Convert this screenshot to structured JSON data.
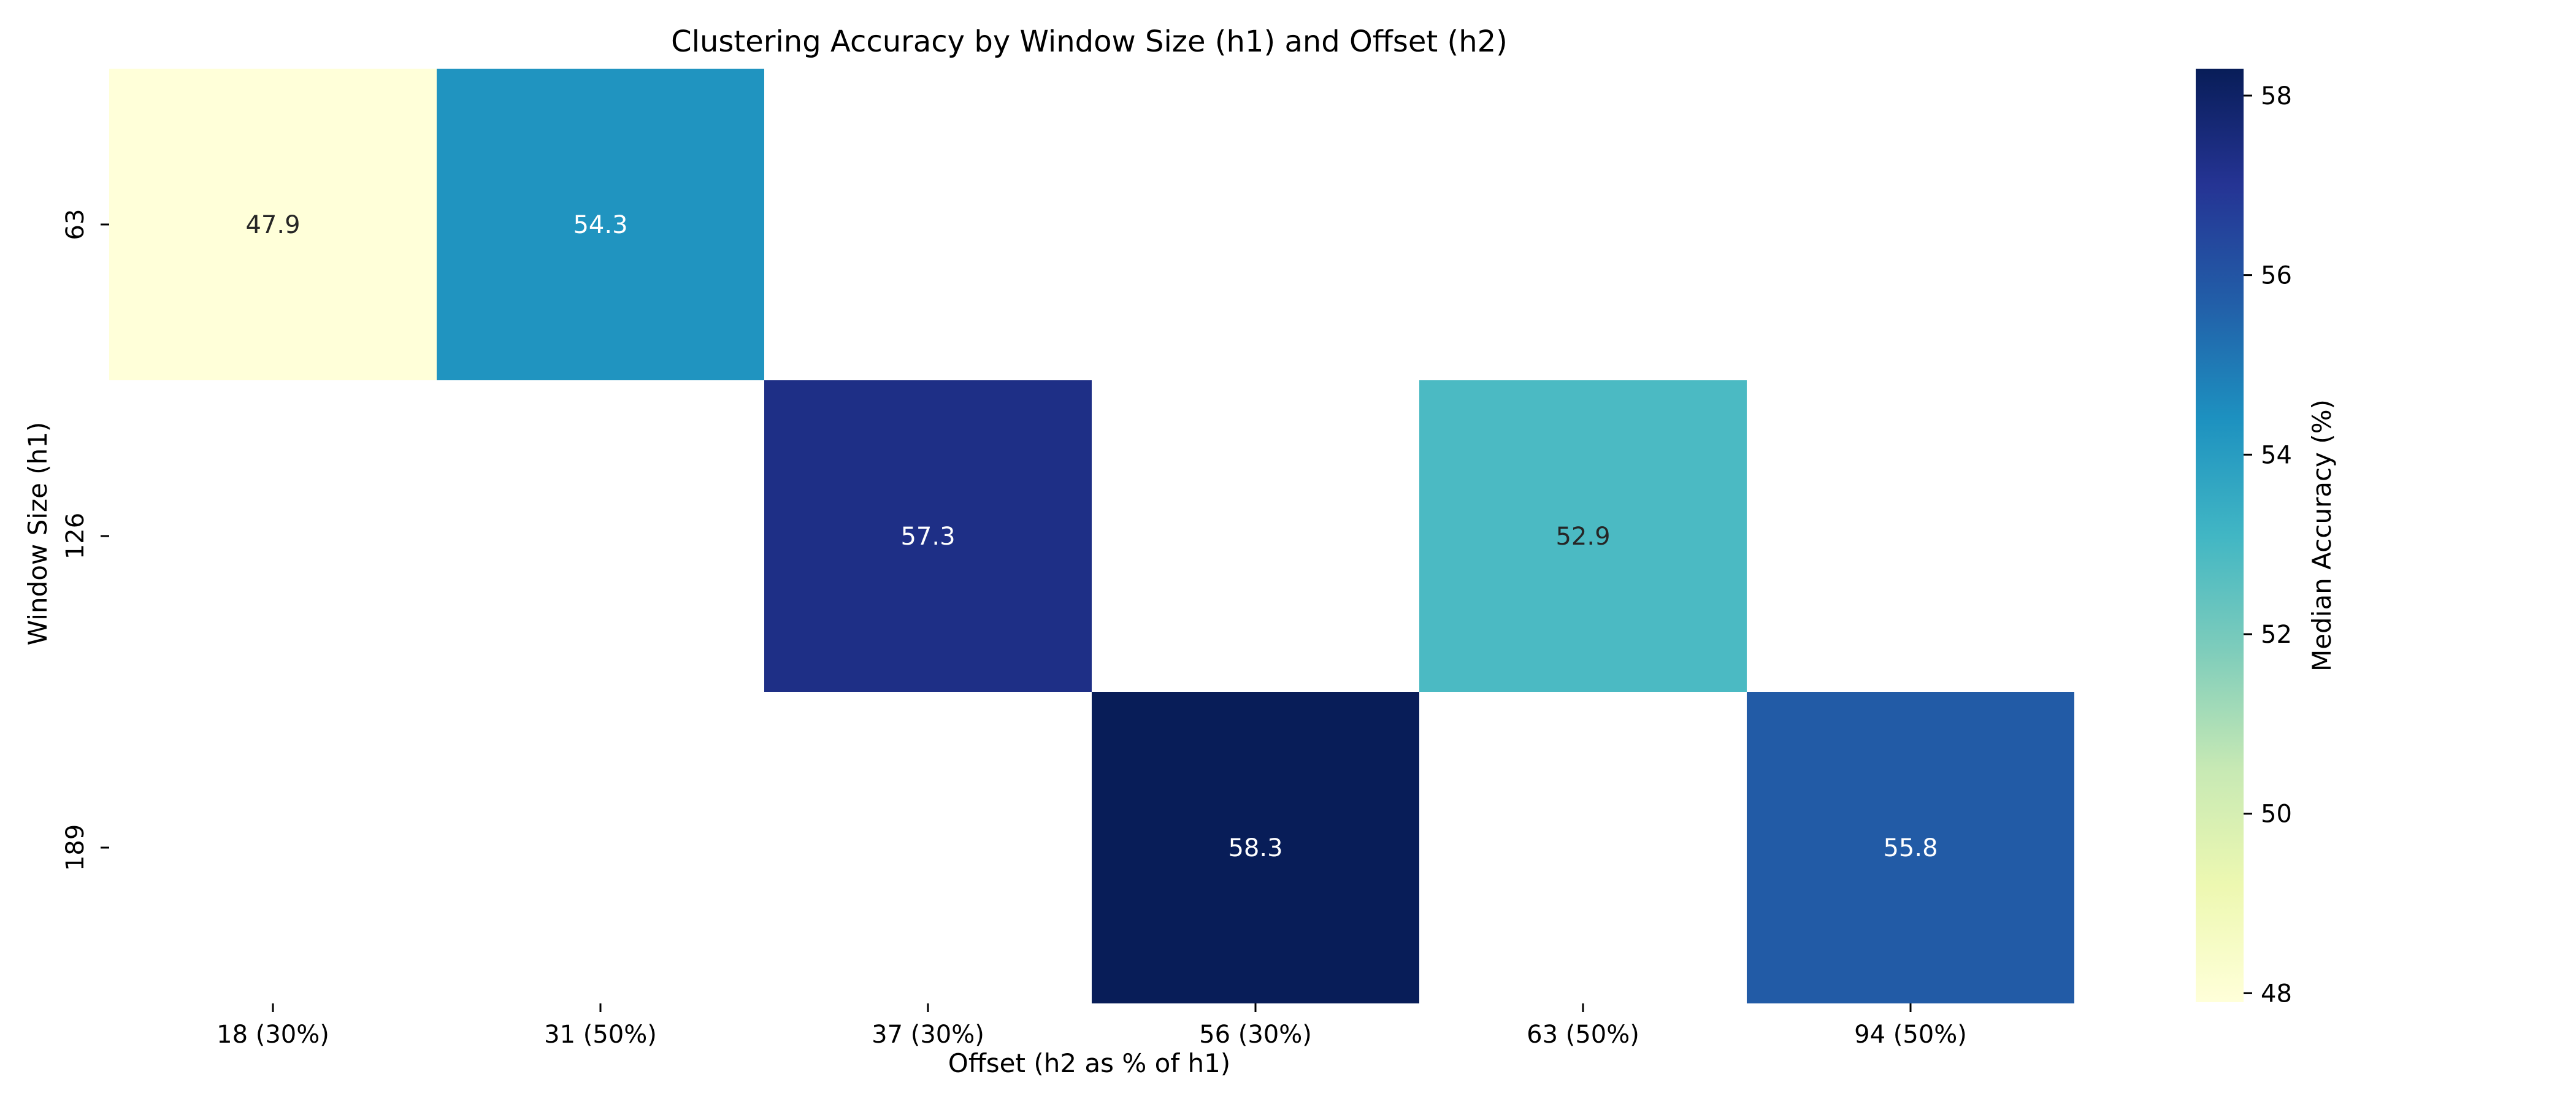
{
  "chart_data": {
    "type": "heatmap",
    "title": "Clustering Accuracy by Window Size (h1) and Offset (h2)",
    "xlabel": "Offset (h2 as % of h1)",
    "ylabel": "Window Size (h1)",
    "x_categories": [
      "18 (30%)",
      "31 (50%)",
      "37 (30%)",
      "56 (30%)",
      "63 (50%)",
      "94 (50%)"
    ],
    "y_categories": [
      "63",
      "126",
      "189"
    ],
    "values": [
      [
        47.9,
        54.3,
        null,
        null,
        null,
        null
      ],
      [
        null,
        null,
        57.3,
        null,
        52.9,
        null
      ],
      [
        null,
        null,
        null,
        58.3,
        null,
        55.8
      ]
    ],
    "value_labels": [
      [
        "47.9",
        "54.3",
        "",
        "",
        "",
        ""
      ],
      [
        "",
        "",
        "57.3",
        "",
        "52.9",
        ""
      ],
      [
        "",
        "",
        "",
        "58.3",
        "",
        "55.8"
      ]
    ],
    "colorbar": {
      "label": "Median Accuracy (%)",
      "range": [
        47.9,
        58.3
      ],
      "ticks": [
        "48",
        "50",
        "52",
        "54",
        "56",
        "58"
      ],
      "colormap": "YlGnBu"
    },
    "grid": false
  }
}
